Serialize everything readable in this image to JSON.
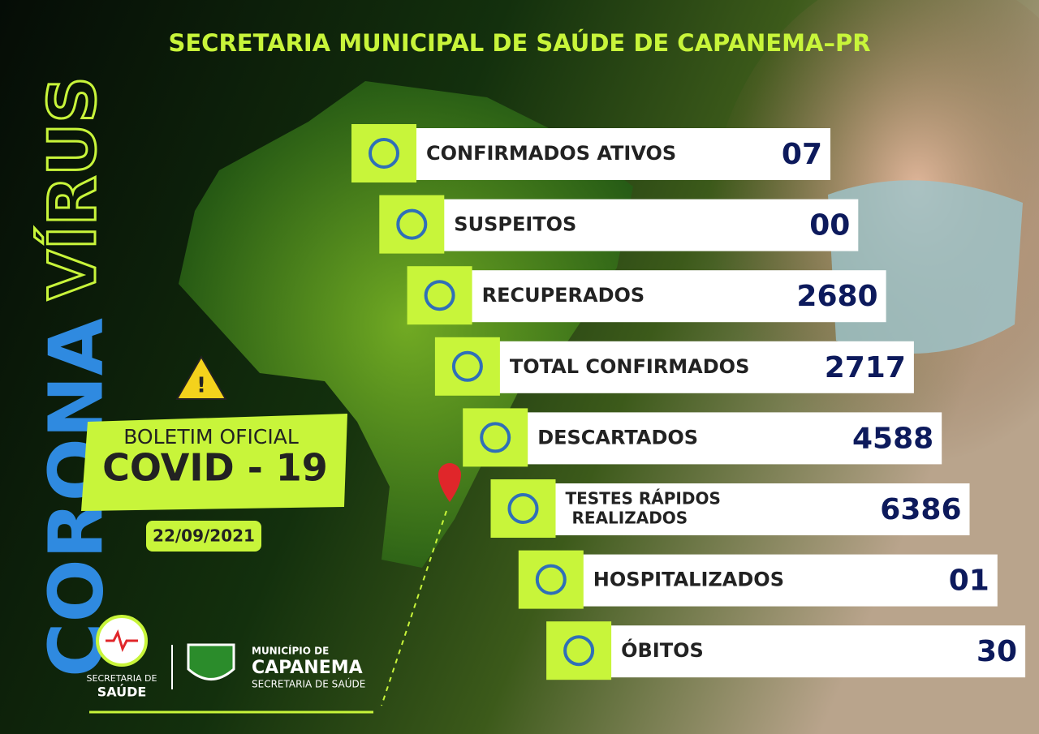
{
  "header": {
    "title": "SECRETARIA MUNICIPAL DE SAÚDE DE CAPANEMA–PR"
  },
  "side_title": {
    "corona": "CORONA",
    "virus": "VÍRUS"
  },
  "bulletin": {
    "title": "BOLETIM OFICIAL",
    "subtitle": "COVID - 19",
    "date": "22/09/2021"
  },
  "stats": [
    {
      "label": "CONFIRMADOS ATIVOS",
      "value": "07"
    },
    {
      "label": "SUSPEITOS",
      "value": "00"
    },
    {
      "label": "RECUPERADOS",
      "value": "2680"
    },
    {
      "label": "TOTAL CONFIRMADOS",
      "value": "2717"
    },
    {
      "label": "DESCARTADOS",
      "value": "4588"
    },
    {
      "label_lines": [
        "TESTES RÁPIDOS",
        "REALIZADOS"
      ],
      "value": "6386"
    },
    {
      "label": "HOSPITALIZADOS",
      "value": "01"
    },
    {
      "label": "ÓBITOS",
      "value": "30"
    }
  ],
  "footer": {
    "health_logo": [
      "SECRETARIA DE",
      "SAÚDE"
    ],
    "municipality": [
      "MUNICÍPIO DE",
      "CAPANEMA",
      "SECRETARIA DE SAÚDE"
    ]
  }
}
